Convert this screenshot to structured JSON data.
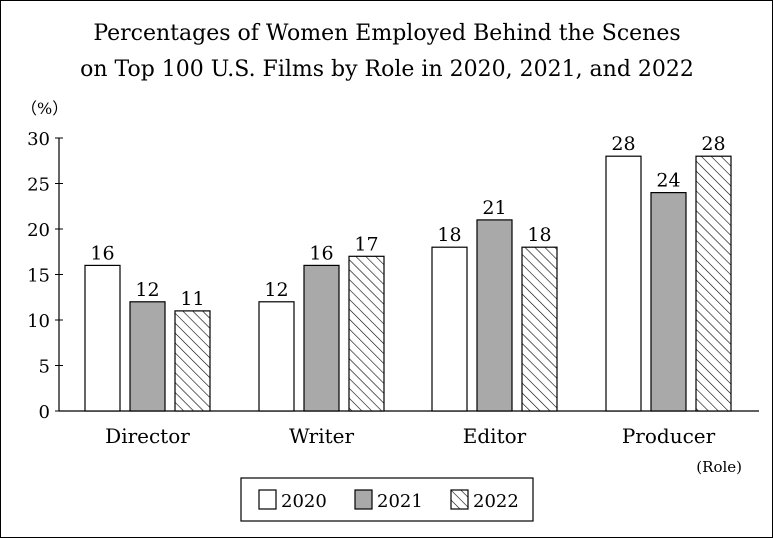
{
  "chart_data": {
    "type": "bar",
    "title": [
      "Percentages of Women Employed Behind the Scenes",
      "on Top 100 U.S. Films by Role in 2020, 2021, and 2022"
    ],
    "y_unit": "（%）",
    "x_unit": "(Role)",
    "categories": [
      "Director",
      "Writer",
      "Editor",
      "Producer"
    ],
    "series": [
      {
        "name": "2020",
        "values": [
          16,
          12,
          18,
          28
        ],
        "fill": "#ffffff"
      },
      {
        "name": "2021",
        "values": [
          12,
          16,
          21,
          24
        ],
        "fill": "#a9a9a9"
      },
      {
        "name": "2022",
        "values": [
          11,
          17,
          18,
          28
        ],
        "fill": "hatch"
      }
    ],
    "ylim": [
      0,
      30
    ],
    "yticks": [
      0,
      5,
      10,
      15,
      20,
      25,
      30
    ],
    "grid": false,
    "legend_position": "bottom-center",
    "colors": {
      "bar_2021": "#a9a9a9",
      "stroke": "#000000"
    }
  }
}
